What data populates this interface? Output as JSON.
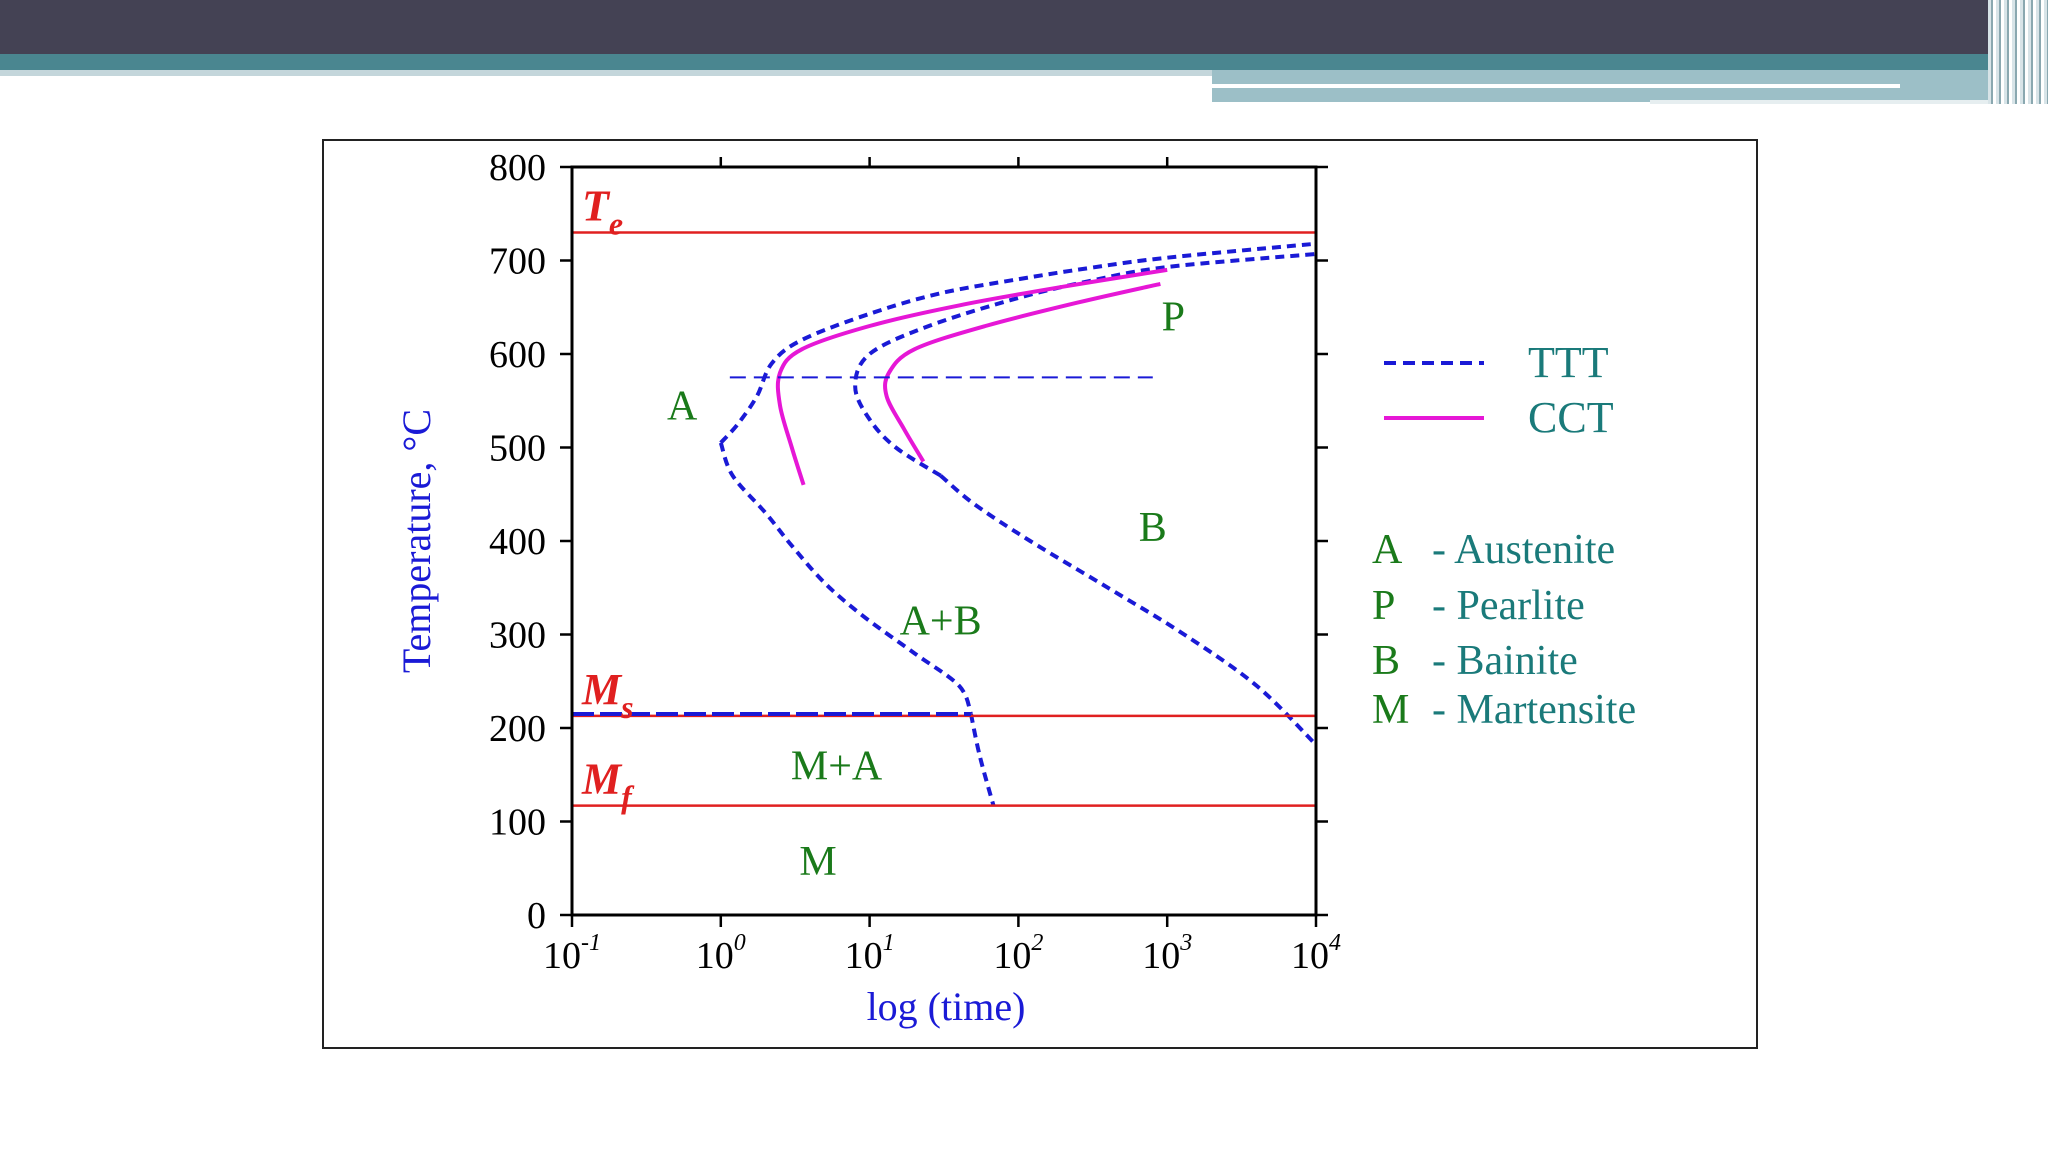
{
  "slide": {
    "colors": {
      "header_dark": "#444254",
      "header_teal": "#4a8690",
      "header_light": "#9cbfc7"
    }
  },
  "chart_data": {
    "type": "line",
    "title": "",
    "xlabel": "log (time)",
    "ylabel": "Temperature, °C",
    "x_scale": "log",
    "xlim": [
      0.1,
      10000
    ],
    "ylim": [
      0,
      800
    ],
    "x_ticks": [
      {
        "base": "10",
        "exp": "-1"
      },
      {
        "base": "10",
        "exp": "0"
      },
      {
        "base": "10",
        "exp": "1"
      },
      {
        "base": "10",
        "exp": "2"
      },
      {
        "base": "10",
        "exp": "3"
      },
      {
        "base": "10",
        "exp": "4"
      }
    ],
    "y_ticks": [
      "0",
      "100",
      "200",
      "300",
      "400",
      "500",
      "600",
      "700",
      "800"
    ],
    "y_tick_values": [
      0,
      100,
      200,
      300,
      400,
      500,
      600,
      700,
      800
    ],
    "grid": false,
    "series": [
      {
        "style": "TTT",
        "color": "#1a1ad6",
        "dash": true,
        "points": [
          [
            1.0,
            505
          ],
          [
            1.3,
            525
          ],
          [
            1.75,
            555
          ],
          [
            2.2,
            590
          ],
          [
            3.5,
            615
          ],
          [
            10,
            643
          ],
          [
            30,
            665
          ],
          [
            100,
            680
          ],
          [
            300,
            692
          ],
          [
            1000,
            703
          ],
          [
            10000,
            718
          ]
        ]
      },
      {
        "style": "TTT",
        "color": "#1a1ad6",
        "dash": true,
        "points": [
          [
            1.0,
            505
          ],
          [
            1.2,
            470
          ],
          [
            2.0,
            430
          ],
          [
            3.0,
            395
          ],
          [
            5.0,
            355
          ],
          [
            9.0,
            320
          ],
          [
            20,
            280
          ],
          [
            40,
            245
          ],
          [
            48,
            215
          ]
        ]
      },
      {
        "style": "TTT",
        "color": "#1a1ad6",
        "dash": true,
        "points": [
          [
            48,
            215
          ],
          [
            55,
            170
          ],
          [
            68,
            117
          ]
        ]
      },
      {
        "style": "TTT",
        "color": "#1a1ad6",
        "dash": true,
        "points": [
          [
            30,
            470
          ],
          [
            50,
            440
          ],
          [
            120,
            400
          ],
          [
            400,
            350
          ],
          [
            1300,
            300
          ],
          [
            4000,
            245
          ],
          [
            10000,
            182
          ]
        ]
      },
      {
        "style": "TTT",
        "color": "#1a1ad6",
        "dash": true,
        "points": [
          [
            30,
            470
          ],
          [
            15,
            500
          ],
          [
            10,
            530
          ],
          [
            8,
            565
          ],
          [
            10,
            600
          ],
          [
            25,
            630
          ],
          [
            100,
            660
          ],
          [
            300,
            678
          ],
          [
            1000,
            693
          ],
          [
            10000,
            707
          ]
        ]
      },
      {
        "style": "CCT",
        "color": "#e617d6",
        "dash": false,
        "points": [
          [
            3.6,
            460
          ],
          [
            3,
            500
          ],
          [
            2.5,
            545
          ],
          [
            2.5,
            580
          ],
          [
            3.5,
            605
          ],
          [
            10,
            630
          ],
          [
            40,
            652
          ],
          [
            200,
            672
          ],
          [
            1000,
            690
          ]
        ]
      },
      {
        "style": "CCT",
        "color": "#e617d6",
        "dash": false,
        "points": [
          [
            23,
            485
          ],
          [
            17,
            520
          ],
          [
            13,
            555
          ],
          [
            13.5,
            580
          ],
          [
            20,
            605
          ],
          [
            60,
            630
          ],
          [
            250,
            655
          ],
          [
            900,
            675
          ]
        ]
      }
    ],
    "horizontal_lines": [
      {
        "label": "T",
        "subscript": "e",
        "y": 730,
        "color": "#e02020"
      },
      {
        "label": "M",
        "subscript": "s",
        "y": 213,
        "color": "#e02020"
      },
      {
        "label": "M",
        "subscript": "f",
        "y": 117,
        "color": "#e02020"
      }
    ],
    "dashed_reference": {
      "y": 575,
      "x_from": 1.15,
      "x_to": 800,
      "color": "#1a1ad6"
    },
    "ms_dashed_overlay": {
      "y": 215,
      "x_from": 0.1,
      "x_to": 48,
      "color": "#1a1ad6"
    },
    "regions": [
      {
        "text": "A",
        "x": 0.55,
        "y": 545
      },
      {
        "text": "P",
        "x": 1100,
        "y": 640
      },
      {
        "text": "B",
        "x": 800,
        "y": 415
      },
      {
        "text": "A+B",
        "x": 30,
        "y": 315
      },
      {
        "text": "M+A",
        "x": 6,
        "y": 160
      },
      {
        "text": "M",
        "x": 4.5,
        "y": 58
      }
    ],
    "legend": [
      {
        "label": "TTT",
        "style": "dashed",
        "color": "#1a1ad6"
      },
      {
        "label": "CCT",
        "style": "solid",
        "color": "#e617d6"
      }
    ],
    "phase_key": [
      {
        "letter": "A",
        "name": "- Austenite"
      },
      {
        "letter": "P",
        "name": "- Pearlite"
      },
      {
        "letter": "B",
        "name": "- Bainite"
      },
      {
        "letter": "M",
        "name": "- Martensite"
      }
    ]
  }
}
